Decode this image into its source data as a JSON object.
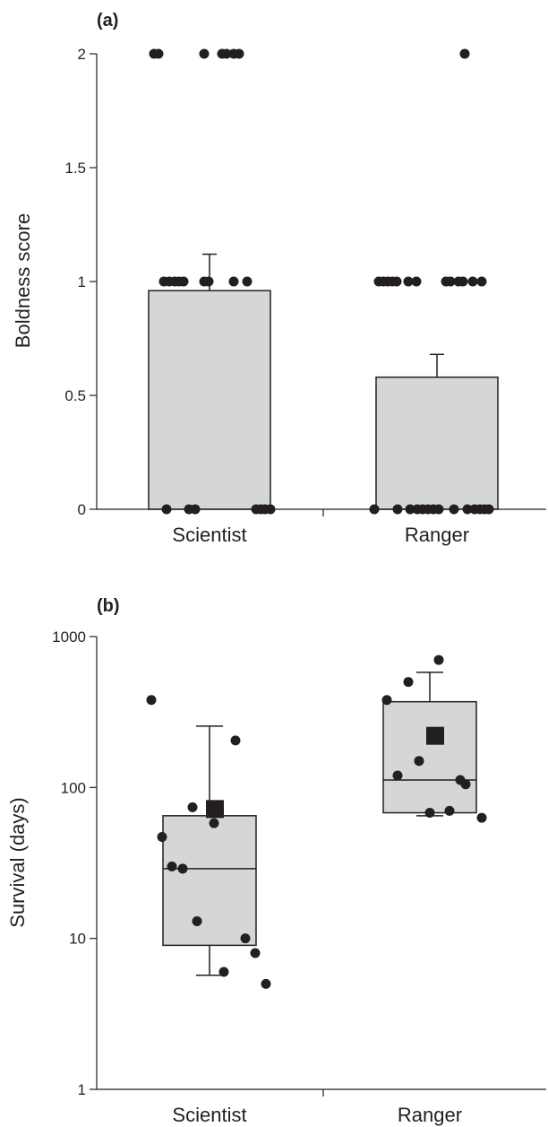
{
  "colors": {
    "bar_fill": "#d5d6d8",
    "ink": "#231f20"
  },
  "chart_data": [
    {
      "panel_label": "(a)",
      "type": "bar",
      "ylabel": "Boldness score",
      "ylim": [
        0,
        2
      ],
      "yticks": [
        0,
        0.5,
        1,
        1.5,
        2
      ],
      "ytick_labels": [
        "0",
        "0.5",
        "1",
        "1.5",
        "2"
      ],
      "categories": [
        "Scientist",
        "Ranger"
      ],
      "bars": [
        {
          "category": "Scientist",
          "mean": 0.96,
          "error_upper": 1.12
        },
        {
          "category": "Ranger",
          "mean": 0.58,
          "error_upper": 0.68
        }
      ],
      "points": [
        {
          "category": "Scientist",
          "value": 2,
          "n": 7
        },
        {
          "category": "Scientist",
          "value": 1,
          "n": 9
        },
        {
          "category": "Scientist",
          "value": 0,
          "n": 7
        },
        {
          "category": "Ranger",
          "value": 2,
          "n": 1
        },
        {
          "category": "Ranger",
          "value": 1,
          "n": 13
        },
        {
          "category": "Ranger",
          "value": 0,
          "n": 14
        }
      ],
      "legend": "none",
      "grid": false
    },
    {
      "panel_label": "(b)",
      "type": "box",
      "ylabel": "Survival (days)",
      "yscale": "log",
      "ylim": [
        1,
        1000
      ],
      "yticks": [
        1,
        10,
        100,
        1000
      ],
      "ytick_labels": [
        "1",
        "10",
        "100",
        "1000"
      ],
      "categories": [
        "Scientist",
        "Ranger"
      ],
      "boxes": [
        {
          "category": "Scientist",
          "whisker_low": 5.7,
          "q1": 9,
          "median": 29,
          "q3": 65,
          "whisker_high": 255,
          "mean": 72
        },
        {
          "category": "Ranger",
          "whisker_low": 65,
          "q1": 68,
          "median": 112,
          "q3": 370,
          "whisker_high": 580,
          "mean": 220
        }
      ],
      "points": [
        {
          "category": "Scientist",
          "values": [
            380,
            47,
            30,
            29,
            74,
            13,
            6,
            58,
            205,
            10,
            8,
            5
          ]
        },
        {
          "category": "Ranger",
          "values": [
            380,
            120,
            500,
            150,
            68,
            700,
            70,
            112,
            105,
            63
          ]
        }
      ],
      "legend": "none",
      "grid": false
    }
  ]
}
